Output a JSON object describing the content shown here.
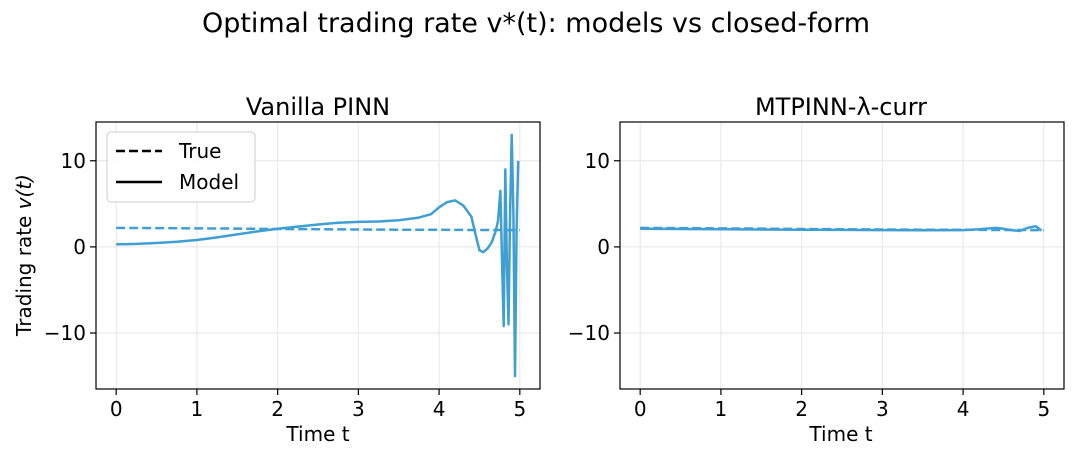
{
  "figure": {
    "suptitle": "Optimal trading rate v*(t): models vs closed-form"
  },
  "colors": {
    "series": "#3f9fd3",
    "grid": "#e6e6e6",
    "axis": "#000000",
    "legend_line": "#000000"
  },
  "chart_data": [
    {
      "type": "line",
      "title": "Vanilla PINN",
      "xlabel": "Time t",
      "ylabel_prefix": "Trading rate ",
      "ylabel_math": "v(t)",
      "xlim": [
        -0.25,
        5.25
      ],
      "ylim": [
        -16.5,
        14.5
      ],
      "xticks": [
        0,
        1,
        2,
        3,
        4,
        5
      ],
      "xtick_labels": [
        "0",
        "1",
        "2",
        "3",
        "4",
        "5"
      ],
      "yticks": [
        -10,
        0,
        10
      ],
      "ytick_labels": [
        "−10",
        "0",
        "10"
      ],
      "grid": true,
      "legend": {
        "position": "upper-left",
        "entries": [
          {
            "label": "True",
            "style": "dashed"
          },
          {
            "label": "Model",
            "style": "solid"
          }
        ]
      },
      "series": [
        {
          "name": "True",
          "style": "dashed",
          "x": [
            0,
            0.5,
            1,
            1.5,
            2,
            2.5,
            3,
            3.5,
            4,
            4.5,
            5
          ],
          "y": [
            2.2,
            2.18,
            2.15,
            2.12,
            2.08,
            2.05,
            2.02,
            2.0,
            1.98,
            1.96,
            1.95
          ]
        },
        {
          "name": "Model",
          "style": "solid",
          "x": [
            0,
            0.25,
            0.5,
            0.75,
            1,
            1.25,
            1.5,
            1.75,
            2,
            2.25,
            2.5,
            2.75,
            3,
            3.25,
            3.5,
            3.75,
            3.9,
            4.0,
            4.1,
            4.2,
            4.3,
            4.4,
            4.45,
            4.5,
            4.55,
            4.6,
            4.65,
            4.7,
            4.73,
            4.76,
            4.78,
            4.8,
            4.82,
            4.84,
            4.86,
            4.88,
            4.9,
            4.92,
            4.94,
            4.96,
            4.98
          ],
          "y": [
            0.3,
            0.35,
            0.45,
            0.6,
            0.8,
            1.1,
            1.45,
            1.8,
            2.1,
            2.35,
            2.6,
            2.8,
            2.9,
            2.95,
            3.1,
            3.4,
            3.8,
            4.6,
            5.2,
            5.4,
            4.8,
            3.5,
            1.5,
            -0.4,
            -0.6,
            -0.2,
            0.5,
            1.8,
            3.0,
            6.5,
            -2.0,
            -9.2,
            9.0,
            -2.0,
            -9.0,
            4.0,
            13.0,
            4.0,
            -15.0,
            2.0,
            10.0
          ]
        }
      ]
    },
    {
      "type": "line",
      "title": "MTPINN-λ-curr",
      "xlabel": "Time t",
      "xlim": [
        -0.25,
        5.25
      ],
      "ylim": [
        -16.5,
        14.5
      ],
      "xticks": [
        0,
        1,
        2,
        3,
        4,
        5
      ],
      "xtick_labels": [
        "0",
        "1",
        "2",
        "3",
        "4",
        "5"
      ],
      "yticks": [
        -10,
        0,
        10
      ],
      "ytick_labels": [
        "−10",
        "0",
        "10"
      ],
      "grid": true,
      "series": [
        {
          "name": "True",
          "style": "dashed",
          "x": [
            0,
            0.5,
            1,
            1.5,
            2,
            2.5,
            3,
            3.5,
            4,
            4.5,
            5
          ],
          "y": [
            2.2,
            2.18,
            2.15,
            2.12,
            2.08,
            2.05,
            2.02,
            2.0,
            1.98,
            1.96,
            1.95
          ]
        },
        {
          "name": "Model",
          "style": "solid",
          "x": [
            0,
            0.5,
            1,
            1.5,
            2,
            2.5,
            3,
            3.5,
            4,
            4.2,
            4.4,
            4.5,
            4.6,
            4.7,
            4.8,
            4.9,
            4.97
          ],
          "y": [
            2.1,
            2.08,
            2.05,
            2.02,
            2.0,
            1.97,
            1.95,
            1.93,
            1.95,
            2.05,
            2.2,
            2.1,
            1.95,
            1.85,
            2.2,
            2.4,
            1.9
          ]
        }
      ]
    }
  ]
}
